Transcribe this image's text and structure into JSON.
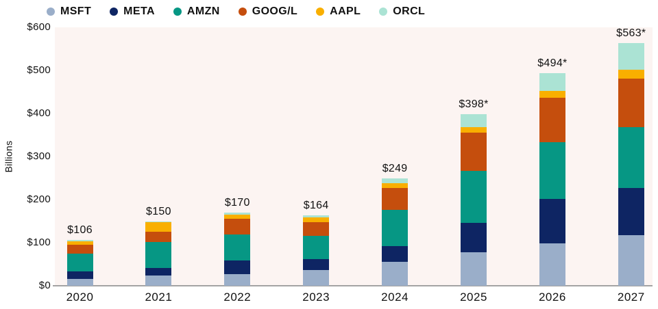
{
  "chart_data": {
    "type": "bar",
    "stacked": true,
    "ylabel": "Billions",
    "legend_position": "top-left",
    "grid": false,
    "plot_background": "#fcf4f2",
    "axis_line_color": "#a3a3a3",
    "text_color": "#111111",
    "ylim": [
      0,
      600
    ],
    "y_ticks": [
      "$0",
      "$100",
      "$200",
      "$300",
      "$400",
      "$500",
      "$600"
    ],
    "y_tick_values": [
      0,
      100,
      200,
      300,
      400,
      500,
      600
    ],
    "categories": [
      "2020",
      "2021",
      "2022",
      "2023",
      "2024",
      "2025",
      "2026",
      "2027"
    ],
    "totals": [
      106,
      150,
      170,
      164,
      249,
      398,
      494,
      563
    ],
    "total_labels": [
      "$106",
      "$150",
      "$170",
      "$164",
      "$249",
      "$398*",
      "$494*",
      "$563*"
    ],
    "series": [
      {
        "name": "MSFT",
        "color": "#9aaec9",
        "values": [
          16,
          24,
          27,
          36,
          56,
          78,
          98,
          117
        ]
      },
      {
        "name": "META",
        "color": "#0e2563",
        "values": [
          18,
          17,
          32,
          26,
          36,
          68,
          103,
          110
        ]
      },
      {
        "name": "AMZN",
        "color": "#069784",
        "values": [
          40,
          60,
          60,
          54,
          84,
          121,
          132,
          141
        ]
      },
      {
        "name": "GOOG/L",
        "color": "#c54e0d",
        "values": [
          21,
          25,
          37,
          32,
          51,
          88,
          103,
          113
        ]
      },
      {
        "name": "AAPL",
        "color": "#f9af00",
        "values": [
          9,
          22,
          9,
          10,
          11,
          13,
          16,
          20
        ]
      },
      {
        "name": "ORCL",
        "color": "#abe3d4",
        "values": [
          2,
          2,
          5,
          6,
          11,
          30,
          42,
          62
        ]
      }
    ]
  }
}
